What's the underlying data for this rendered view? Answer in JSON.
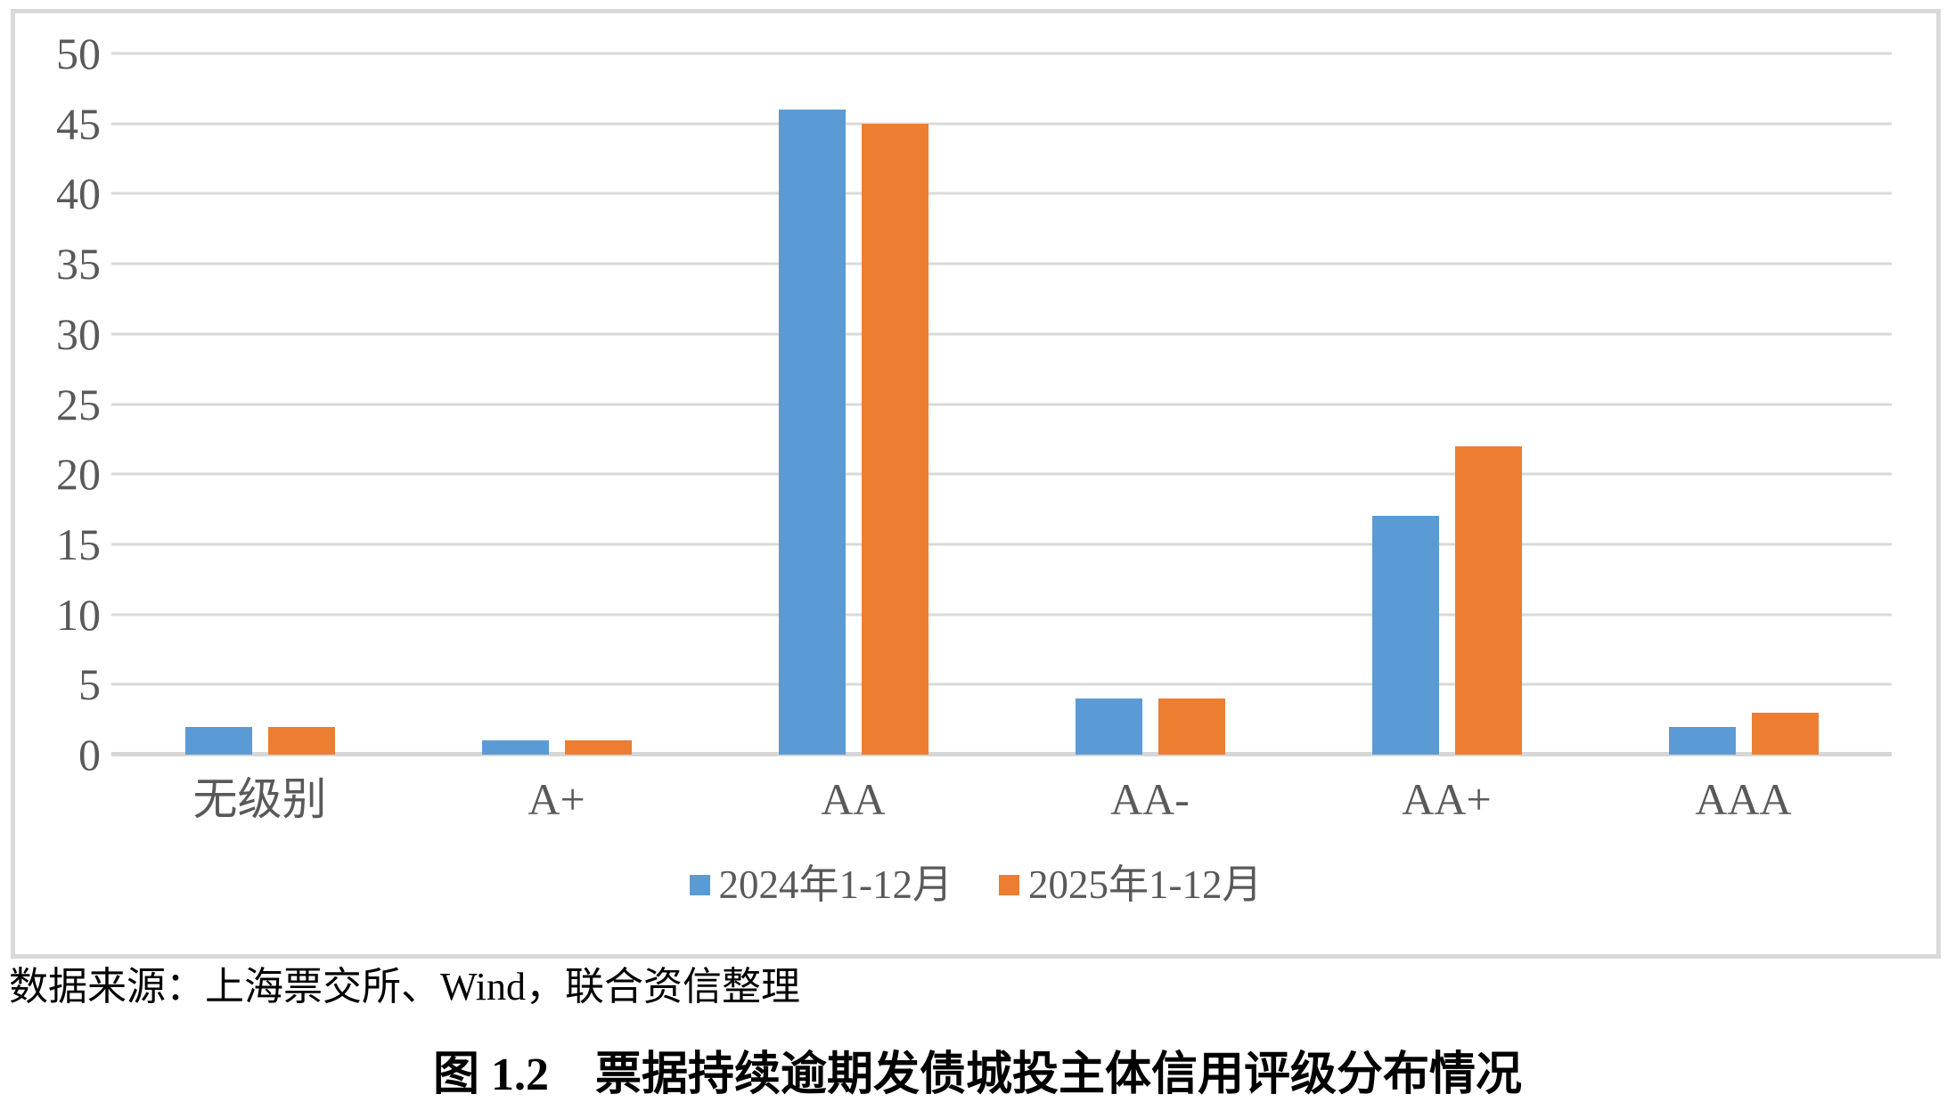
{
  "chart_data": {
    "type": "bar",
    "title": "",
    "categories": [
      "无级别",
      "A+",
      "AA",
      "AA-",
      "AA+",
      "AAA"
    ],
    "series": [
      {
        "name": "2024年1-12月",
        "color": "#5B9BD5",
        "values": [
          2,
          1,
          46,
          4,
          17,
          2
        ]
      },
      {
        "name": "2025年1-12月",
        "color": "#ED7D31",
        "values": [
          2,
          1,
          45,
          4,
          22,
          3
        ]
      }
    ],
    "ylim": [
      0,
      50
    ],
    "ytick_step": 5,
    "grid": true,
    "gridline_color": "#D9D9D9",
    "axis_text_color": "#595959",
    "legend_position": "bottom-center"
  },
  "source_text": "数据来源：上海票交所、Wind，联合资信整理",
  "caption": "图 1.2　票据持续逾期发债城投主体信用评级分布情况"
}
